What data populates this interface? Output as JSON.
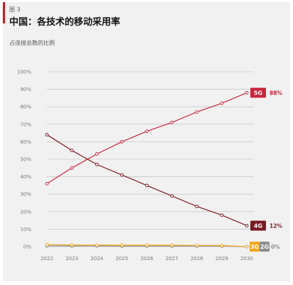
{
  "figure_label": "图 3",
  "title": "中国：各技术的移动采用率",
  "subtitle": "占连接总数的比例",
  "colors": {
    "accent": "#c9181e",
    "5G": "#c9253c",
    "4G": "#7a1a22",
    "3G": "#f2a51a",
    "2G": "#8c8c8c",
    "grid": "#bdbdbd",
    "background": "#f1f1f1"
  },
  "chart_data": {
    "type": "line",
    "title": "中国：各技术的移动采用率",
    "subtitle": "占连接总数的比例",
    "xlabel": "",
    "ylabel": "",
    "x": [
      "2022",
      "2023",
      "2024",
      "2025",
      "2026",
      "2027",
      "2028",
      "2029",
      "2030"
    ],
    "ylim": [
      0,
      100
    ],
    "yticks": [
      "0%",
      "10%",
      "20%",
      "30%",
      "40%",
      "50%",
      "60%",
      "70%",
      "80%",
      "90%",
      "100%"
    ],
    "grid": true,
    "series": [
      {
        "name": "5G",
        "values": [
          36,
          45,
          53,
          60,
          66,
          71,
          77,
          82,
          88
        ],
        "end_label": "88%",
        "color": "#c9253c"
      },
      {
        "name": "4G",
        "values": [
          64,
          55,
          47,
          41,
          35,
          29,
          23,
          18,
          12
        ],
        "end_label": "12%",
        "color": "#7a1a22"
      },
      {
        "name": "3G",
        "values": [
          1.2,
          0.9,
          0.8,
          0.8,
          0.8,
          0.8,
          0.7,
          0.6,
          0
        ],
        "end_label": "",
        "color": "#f2a51a"
      },
      {
        "name": "2G",
        "values": [
          0.4,
          0.4,
          0.4,
          0.3,
          0.3,
          0.3,
          0.3,
          0.3,
          0
        ],
        "end_label": "0%",
        "color": "#8c8c8c"
      }
    ]
  }
}
